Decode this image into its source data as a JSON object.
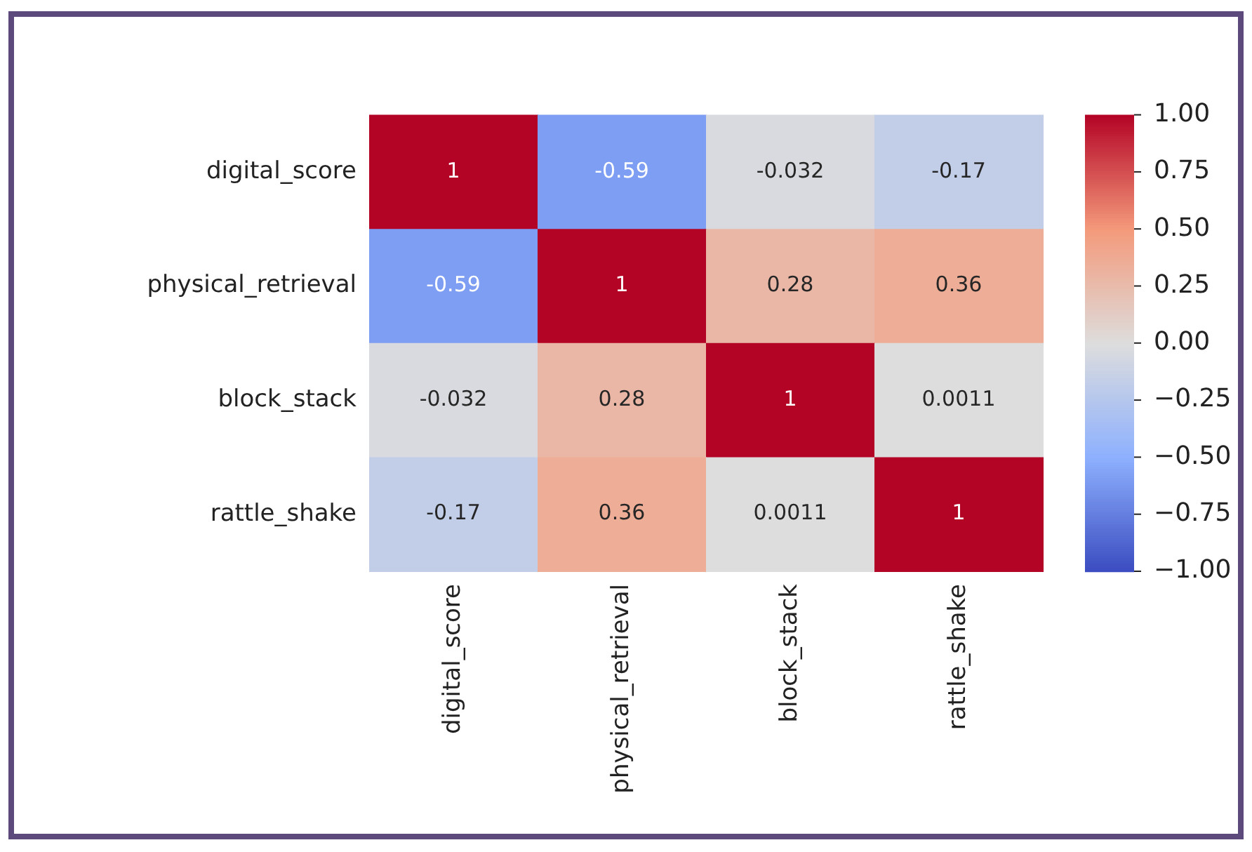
{
  "chart_data": {
    "type": "heatmap",
    "categories": [
      "digital_score",
      "physical_retrieval",
      "block_stack",
      "rattle_shake"
    ],
    "y_categories": [
      "digital_score",
      "physical_retrieval",
      "block_stack",
      "rattle_shake"
    ],
    "cells": [
      [
        1,
        -0.59,
        -0.032,
        -0.17
      ],
      [
        -0.59,
        1,
        0.28,
        0.36
      ],
      [
        -0.032,
        0.28,
        1,
        0.0011
      ],
      [
        -0.17,
        0.36,
        0.0011,
        1
      ]
    ],
    "clim": [
      -1,
      1
    ],
    "cticks": [
      {
        "value": -1,
        "label": "−1.00"
      },
      {
        "value": -0.75,
        "label": "−0.75"
      },
      {
        "value": -0.5,
        "label": "−0.50"
      },
      {
        "value": -0.25,
        "label": "−0.25"
      },
      {
        "value": 0,
        "label": "0.00"
      },
      {
        "value": 0.25,
        "label": "0.25"
      },
      {
        "value": 0.5,
        "label": "0.50"
      },
      {
        "value": 0.75,
        "label": "0.75"
      },
      {
        "value": 1,
        "label": "1.00"
      }
    ],
    "data_labels": true
  }
}
